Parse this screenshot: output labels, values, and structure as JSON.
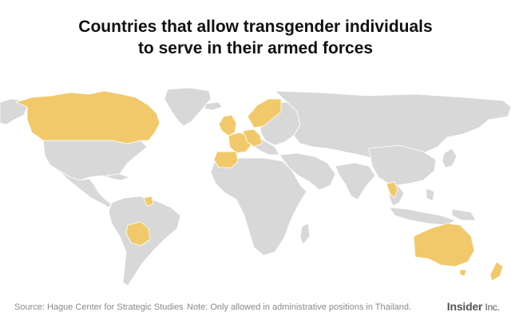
{
  "title": {
    "line1": "Countries that allow transgender individuals",
    "line2": "to serve in their armed forces"
  },
  "footer": {
    "source": "Source: Hague Center for Strategic Studies",
    "note": "Note: Only allowed in administrative positions in Thailand."
  },
  "logo": {
    "text": "Insider",
    "suffix": " Inc."
  },
  "colors": {
    "highlight": "#f2c96a",
    "land": "#d8d8d8",
    "background": "#ffffff"
  },
  "map": {
    "highlighted_countries": [
      "Canada",
      "Bolivia",
      "Guyana",
      "United Kingdom",
      "Ireland",
      "Spain",
      "France",
      "Belgium",
      "Netherlands",
      "Germany",
      "Denmark",
      "Norway",
      "Sweden",
      "Finland",
      "Estonia",
      "Czech Republic",
      "Austria",
      "Thailand",
      "Australia",
      "New Zealand"
    ]
  }
}
